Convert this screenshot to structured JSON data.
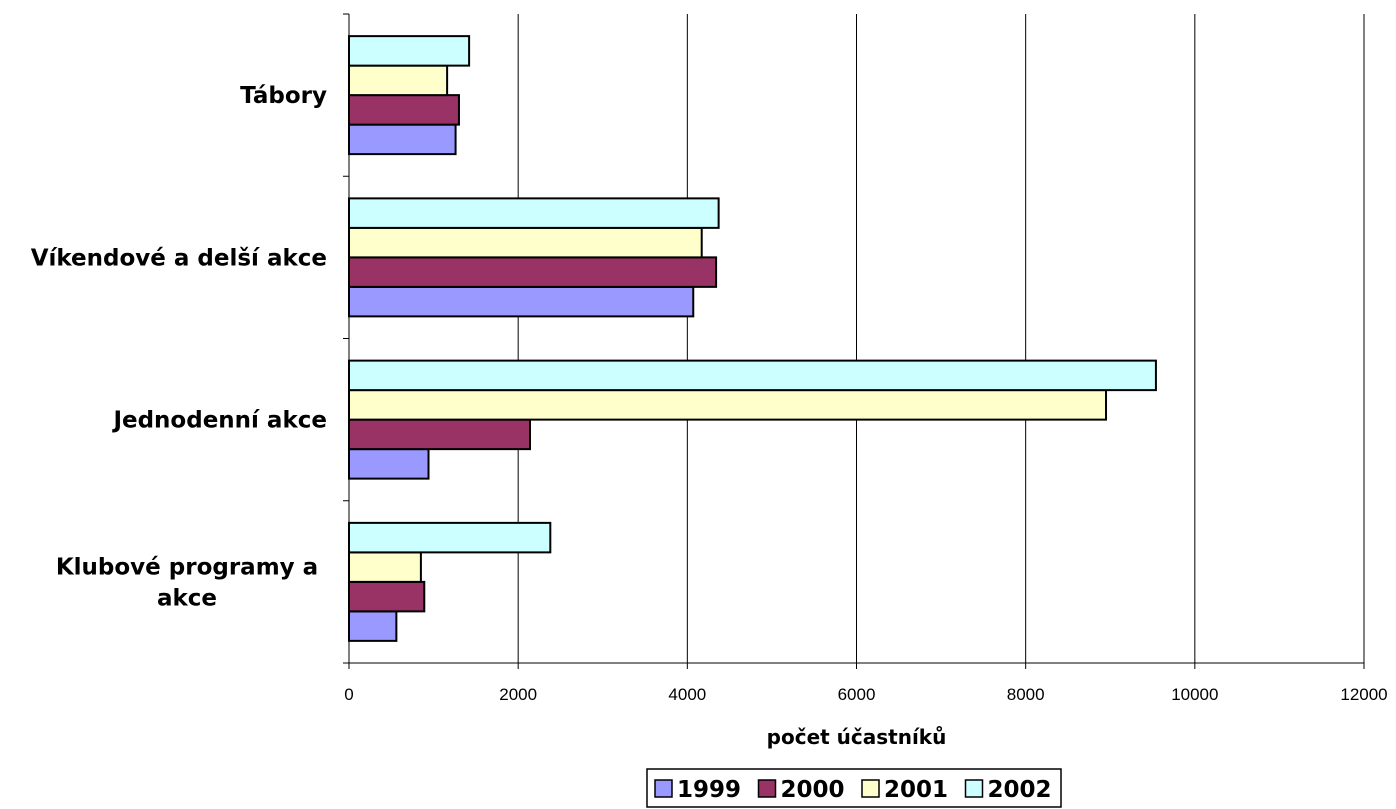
{
  "chart_data": {
    "type": "bar",
    "orientation": "horizontal",
    "categories": [
      "Klubové programy a akce",
      "Jednodenní akce",
      "Víkendové a delší akce",
      "Tábory"
    ],
    "category_lines": [
      [
        "Klubové programy a",
        "akce"
      ],
      [
        "Jednodenní akce"
      ],
      [
        "Víkendové a delší akce"
      ],
      [
        "Tábory"
      ]
    ],
    "series": [
      {
        "name": "1999",
        "color": "#9999ff",
        "values": [
          560,
          940,
          4070,
          1260
        ]
      },
      {
        "name": "2000",
        "color": "#993366",
        "values": [
          890,
          2140,
          4340,
          1300
        ]
      },
      {
        "name": "2001",
        "color": "#ffffcc",
        "values": [
          850,
          8950,
          4170,
          1160
        ]
      },
      {
        "name": "2002",
        "color": "#ccffff",
        "values": [
          2380,
          9540,
          4370,
          1420
        ]
      }
    ],
    "xlabel": "počet účastníků",
    "xlim": [
      0,
      12000
    ],
    "xticks": [
      0,
      2000,
      4000,
      6000,
      8000,
      10000,
      12000
    ],
    "grid": "vertical",
    "legend_position": "bottom"
  }
}
